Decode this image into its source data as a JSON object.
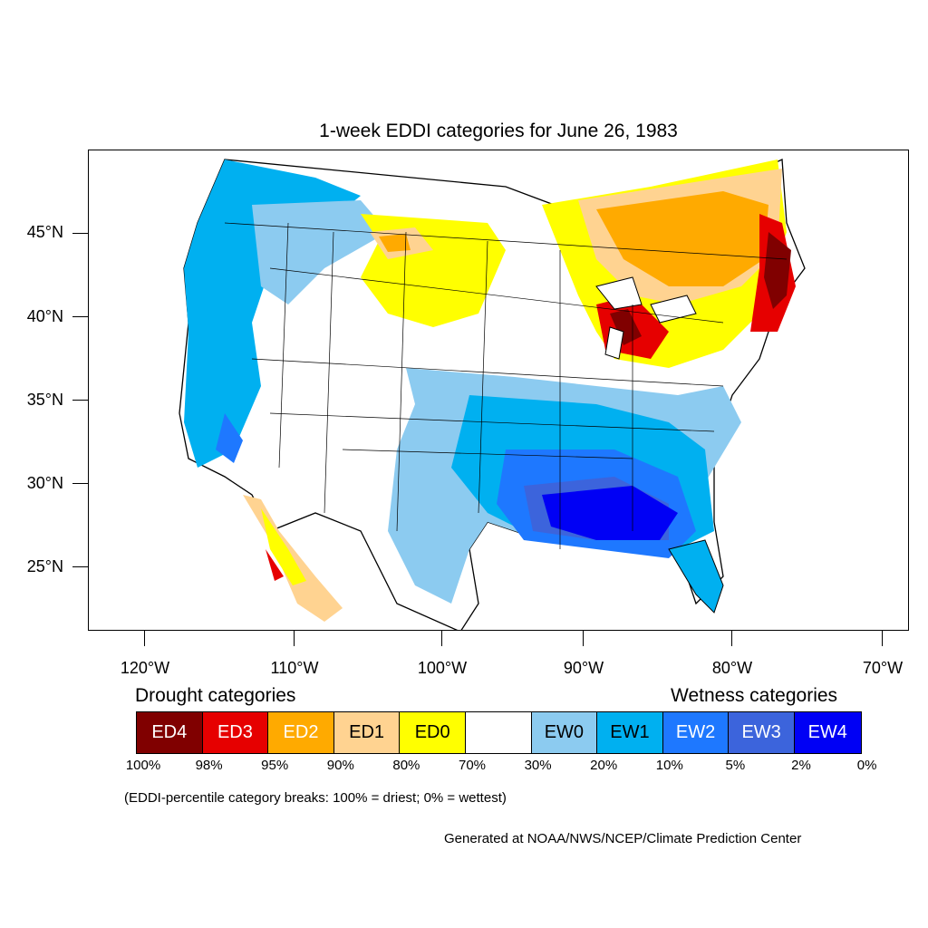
{
  "title": "1-week EDDI categories for June 26, 1983",
  "map": {
    "lat_labels": [
      "45°N",
      "40°N",
      "35°N",
      "30°N",
      "25°N"
    ],
    "lon_labels": [
      "120°W",
      "110°W",
      "100°W",
      "90°W",
      "80°W",
      "70°W"
    ],
    "colors": {
      "ED4": "#800000",
      "ED3": "#e60000",
      "ED2": "#ffaa00",
      "ED1": "#ffd391",
      "ED0": "#ffff00",
      "neutral": "#ffffff",
      "EW0": "#8ccbf0",
      "EW1": "#00b0f0",
      "EW2": "#1e78ff",
      "EW3": "#3c64dc",
      "EW4": "#0000f5"
    }
  },
  "legend": {
    "drought_heading": "Drought categories",
    "wetness_heading": "Wetness categories",
    "categories": [
      {
        "label": "ED4",
        "color": "#800000",
        "text_color": "#ffffff"
      },
      {
        "label": "ED3",
        "color": "#e60000",
        "text_color": "#ffffff"
      },
      {
        "label": "ED2",
        "color": "#ffaa00",
        "text_color": "#ffffff"
      },
      {
        "label": "ED1",
        "color": "#ffd391",
        "text_color": "#000000"
      },
      {
        "label": "ED0",
        "color": "#ffff00",
        "text_color": "#000000"
      },
      {
        "label": "",
        "color": "#ffffff",
        "text_color": "#000000"
      },
      {
        "label": "EW0",
        "color": "#8ccbf0",
        "text_color": "#000000"
      },
      {
        "label": "EW1",
        "color": "#00b0f0",
        "text_color": "#000000"
      },
      {
        "label": "EW2",
        "color": "#1e78ff",
        "text_color": "#ffffff"
      },
      {
        "label": "EW3",
        "color": "#3c64dc",
        "text_color": "#ffffff"
      },
      {
        "label": "EW4",
        "color": "#0000f5",
        "text_color": "#ffffff"
      }
    ],
    "percentiles": [
      "100%",
      "98%",
      "95%",
      "90%",
      "80%",
      "70%",
      "30%",
      "20%",
      "10%",
      "5%",
      "2%",
      "0%"
    ],
    "note": "(EDDI-percentile category breaks: 100% = driest; 0% = wettest)"
  },
  "credit": "Generated at NOAA/NWS/NCEP/Climate Prediction Center"
}
